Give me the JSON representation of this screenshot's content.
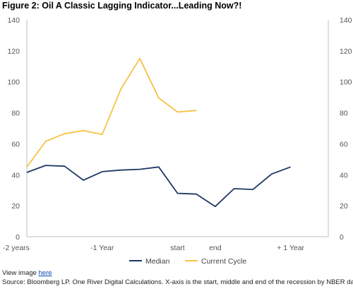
{
  "title": "Figure 2: Oil A Classic Lagging Indicator...Leading Now?!",
  "footer": {
    "view_prefix": "View image ",
    "view_link": "here",
    "source": "Source: Bloomberg LP. One River Digital Calculations. X-axis is the start, middle and end of the recession by NBER dates."
  },
  "colors": {
    "median": "#1f3864",
    "current_cycle": "#f5c342",
    "axis": "#bfbfbf"
  },
  "chart_data": {
    "type": "line",
    "title": "Figure 2: Oil A Classic Lagging Indicator...Leading Now?!",
    "x_tick_labels": [
      "-2 years",
      "-1 Year",
      "start",
      "end",
      "+ 1 Year"
    ],
    "x_tick_positions": [
      0,
      4,
      8,
      10,
      14
    ],
    "xlim": [
      0,
      16
    ],
    "ylim": [
      0,
      140
    ],
    "y_ticks": [
      0,
      20,
      40,
      60,
      80,
      100,
      120,
      140
    ],
    "y_ticks_right": [
      0,
      20,
      40,
      60,
      80,
      100,
      120,
      140
    ],
    "grid": false,
    "legend": "bottom",
    "series": [
      {
        "name": "Median",
        "color": "#1f3864",
        "x": [
          0,
          1,
          2,
          3,
          4,
          5,
          6,
          7,
          8,
          9,
          10,
          11,
          12,
          13,
          14
        ],
        "values": [
          41.5,
          46,
          45.5,
          36.5,
          42,
          43,
          43.5,
          45,
          28,
          27.5,
          19.5,
          31,
          30.5,
          40.5,
          45
        ]
      },
      {
        "name": "Current Cycle",
        "color": "#f5c342",
        "x": [
          0,
          1,
          2,
          3,
          4,
          5,
          6,
          7,
          8,
          9
        ],
        "values": [
          45,
          61.5,
          66.5,
          68.5,
          66,
          95.5,
          115,
          89.5,
          80.5,
          81.5
        ]
      }
    ]
  }
}
